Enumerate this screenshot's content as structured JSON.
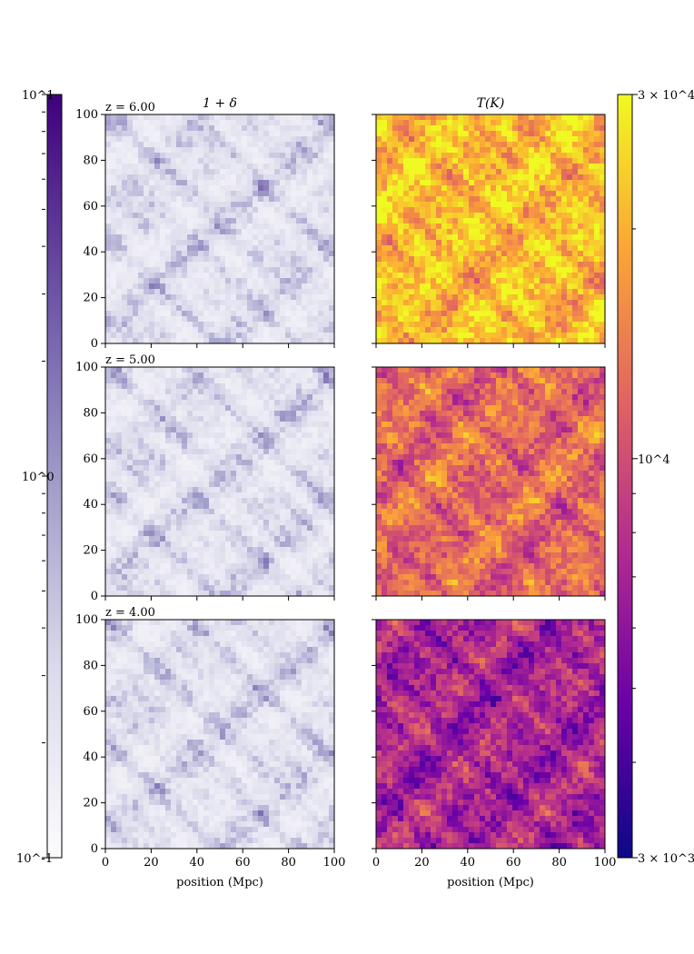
{
  "chart_data": {
    "type": "heatmap",
    "column_titles": [
      "1 + δ",
      "T(K)"
    ],
    "row_labels": [
      "z = 6.00",
      "z = 5.00",
      "z = 4.00"
    ],
    "xlabel": "position (Mpc)",
    "x_ticks": [
      "0",
      "20",
      "40",
      "60",
      "80",
      "100"
    ],
    "y_ticks": [
      "0",
      "20",
      "40",
      "60",
      "80",
      "100"
    ],
    "xlim": [
      0,
      100
    ],
    "ylim": [
      0,
      100
    ],
    "density_colorbar": {
      "scale": "log",
      "range": [
        0.1,
        10
      ],
      "tick_labels": [
        "10^1",
        "10^0",
        "10^-1"
      ],
      "colormap": "Purples",
      "colors": [
        "#fcfbfd",
        "#dadaeb",
        "#9e9ac8",
        "#6a51a3",
        "#3f007d"
      ]
    },
    "temperature_colorbar": {
      "scale": "log",
      "range": [
        3000,
        30000
      ],
      "tick_labels": [
        "3 × 10^4",
        "10^4",
        "3 × 10^3"
      ],
      "colormap": "plasma",
      "colors": [
        "#0d0887",
        "#6a00a8",
        "#b12a90",
        "#e16462",
        "#fca636",
        "#f0f921"
      ]
    },
    "panels": [
      {
        "row": "z = 6.00",
        "quantity": "density"
      },
      {
        "row": "z = 6.00",
        "quantity": "temperature",
        "mean_temperature_level": 0.85
      },
      {
        "row": "z = 5.00",
        "quantity": "density"
      },
      {
        "row": "z = 5.00",
        "quantity": "temperature",
        "mean_temperature_level": 0.62
      },
      {
        "row": "z = 4.00",
        "quantity": "density"
      },
      {
        "row": "z = 4.00",
        "quantity": "temperature",
        "mean_temperature_level": 0.38
      }
    ]
  }
}
